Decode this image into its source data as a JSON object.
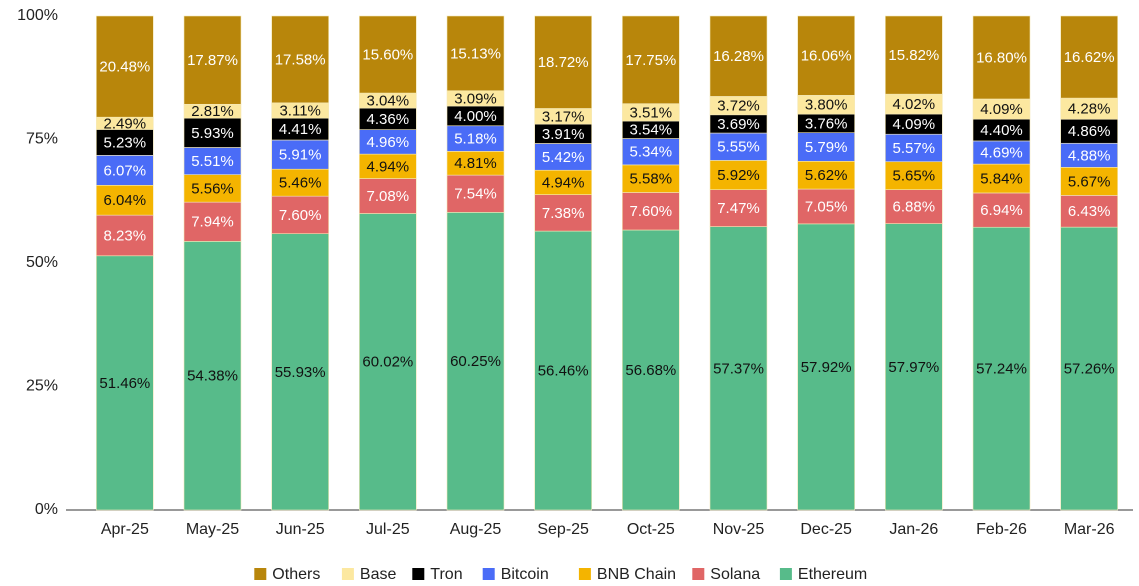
{
  "chart_data": {
    "type": "stacked_bar",
    "categories": [
      "Apr-25",
      "May-25",
      "Jun-25",
      "Jul-25",
      "Aug-25",
      "Sep-25",
      "Oct-25",
      "Nov-25",
      "Dec-25",
      "Jan-26",
      "Feb-26",
      "Mar-26"
    ],
    "series": [
      {
        "name": "Ethereum",
        "color": "#57bb8a",
        "values": [
          51.46,
          54.38,
          55.93,
          60.02,
          60.25,
          56.46,
          56.68,
          57.37,
          57.92,
          57.97,
          57.24,
          57.26
        ],
        "value_labels": [
          "51.46%",
          "54.38%",
          "55.93%",
          "60.02%",
          "60.25%",
          "56.46%",
          "56.68%",
          "57.37%",
          "57.92%",
          "57.97%",
          "57.24%",
          "57.26%"
        ]
      },
      {
        "name": "Solana",
        "color": "#e06666",
        "values": [
          8.23,
          7.94,
          7.6,
          7.08,
          7.54,
          7.38,
          7.6,
          7.47,
          7.05,
          6.88,
          6.94,
          6.43
        ],
        "value_labels": [
          "8.23%",
          "7.94%",
          "7.60%",
          "7.08%",
          "7.54%",
          "7.38%",
          "7.60%",
          "7.47%",
          "7.05%",
          "6.88%",
          "6.94%",
          "6.43%"
        ]
      },
      {
        "name": "BNB Chain",
        "color": "#f4b400",
        "values": [
          6.04,
          5.56,
          5.46,
          4.94,
          4.81,
          4.94,
          5.58,
          5.92,
          5.62,
          5.65,
          5.84,
          5.67
        ],
        "value_labels": [
          "6.04%",
          "5.56%",
          "5.46%",
          "4.94%",
          "4.81%",
          "4.94%",
          "5.58%",
          "5.92%",
          "5.62%",
          "5.65%",
          "5.84%",
          "5.67%"
        ]
      },
      {
        "name": "Bitcoin",
        "color": "#4a6cf7",
        "values": [
          6.07,
          5.51,
          5.91,
          4.96,
          5.18,
          5.42,
          5.34,
          5.55,
          5.79,
          5.57,
          4.69,
          4.88
        ],
        "value_labels": [
          "6.07%",
          "5.51%",
          "5.91%",
          "4.96%",
          "5.18%",
          "5.42%",
          "5.34%",
          "5.55%",
          "5.79%",
          "5.57%",
          "4.69%",
          "4.88%"
        ]
      },
      {
        "name": "Tron",
        "color": "#000000",
        "values": [
          5.23,
          5.93,
          4.41,
          4.36,
          4.0,
          3.91,
          3.54,
          3.69,
          3.76,
          4.09,
          4.4,
          4.86
        ],
        "value_labels": [
          "5.23%",
          "5.93%",
          "4.41%",
          "4.36%",
          "4.00%",
          "3.91%",
          "3.54%",
          "3.69%",
          "3.76%",
          "4.09%",
          "4.40%",
          "4.86%"
        ]
      },
      {
        "name": "Base",
        "color": "#fce8a0",
        "values": [
          2.49,
          2.81,
          3.11,
          3.04,
          3.09,
          3.17,
          3.51,
          3.72,
          3.8,
          4.02,
          4.09,
          4.28
        ],
        "value_labels": [
          "2.49%",
          "2.81%",
          "3.11%",
          "3.04%",
          "3.09%",
          "3.17%",
          "3.51%",
          "3.72%",
          "3.80%",
          "4.02%",
          "4.09%",
          "4.28%"
        ]
      },
      {
        "name": "Others",
        "color": "#b8860b",
        "values": [
          20.48,
          17.87,
          17.58,
          15.6,
          15.13,
          18.72,
          17.75,
          16.28,
          16.06,
          15.82,
          16.8,
          16.62
        ],
        "value_labels": [
          "20.48%",
          "17.87%",
          "17.58%",
          "15.60%",
          "15.13%",
          "18.72%",
          "17.75%",
          "16.28%",
          "16.06%",
          "15.82%",
          "16.80%",
          "16.62%"
        ]
      }
    ],
    "ylim": [
      0,
      100
    ],
    "yticks": [
      {
        "value": 0,
        "label": "0%"
      },
      {
        "value": 25,
        "label": "25%"
      },
      {
        "value": 50,
        "label": "50%"
      },
      {
        "value": 75,
        "label": "75%"
      },
      {
        "value": 100,
        "label": "100%"
      }
    ],
    "legend": "bottom"
  }
}
